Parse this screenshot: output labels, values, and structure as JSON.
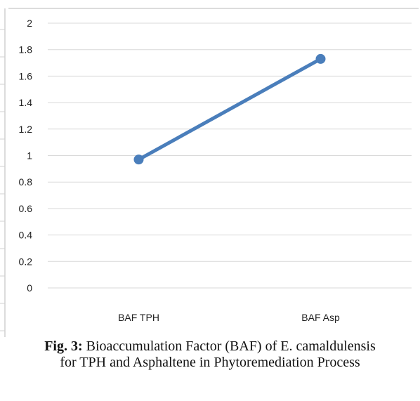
{
  "caption": {
    "label": "Fig. 3:",
    "text": " Bioaccumulation Factor (BAF) of E. camaldulensis for TPH and Asphaltene in Phytoremediation Process"
  },
  "chart_data": {
    "type": "line",
    "categories": [
      "BAF TPH",
      "BAF Asp"
    ],
    "series": [
      {
        "values": [
          0.97,
          1.73
        ]
      }
    ],
    "ylim": [
      0,
      2
    ],
    "yticks": [
      "0",
      "0.2",
      "0.4",
      "0.6",
      "0.8",
      "1",
      "1.2",
      "1.4",
      "1.6",
      "1.8",
      "2"
    ],
    "grid": true,
    "legend": "none",
    "line_color": "#4a7ebb",
    "grid_color": "#d9d9d9"
  }
}
